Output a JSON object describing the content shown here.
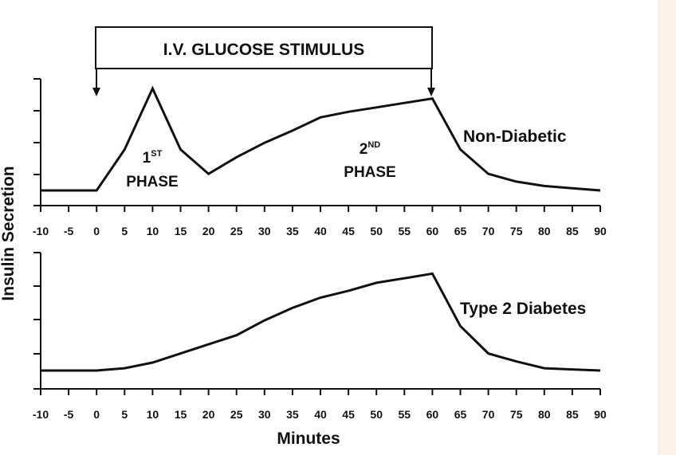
{
  "stimulus_label": "I.V. GLUCOSE STIMULUS",
  "chart_data": {
    "type": "line",
    "xlabel": "Minutes",
    "ylabel": "Insulin Secretion",
    "xlim": [
      -10,
      90
    ],
    "x_ticks": [
      "-10",
      "-5",
      "0",
      "5",
      "10",
      "15",
      "20",
      "25",
      "30",
      "35",
      "40",
      "45",
      "50",
      "55",
      "60",
      "65",
      "70",
      "75",
      "80",
      "85",
      "90"
    ],
    "y_scale": "relative, unlabeled",
    "panels": [
      {
        "label": "Non-Diabetic",
        "x": [
          -10,
          0,
          5,
          10,
          15,
          20,
          25,
          30,
          35,
          40,
          45,
          50,
          55,
          60,
          65,
          70,
          75,
          80,
          85,
          90
        ],
        "y": [
          0.0,
          0.0,
          0.37,
          0.92,
          0.37,
          0.15,
          0.3,
          0.43,
          0.54,
          0.66,
          0.71,
          0.75,
          0.79,
          0.83,
          0.37,
          0.15,
          0.08,
          0.04,
          0.02,
          0.0
        ]
      },
      {
        "label": "Type 2 Diabetes",
        "x": [
          -10,
          0,
          5,
          10,
          15,
          20,
          25,
          30,
          35,
          40,
          45,
          50,
          55,
          60,
          65,
          70,
          75,
          80,
          85,
          90
        ],
        "y": [
          0.0,
          0.0,
          0.02,
          0.07,
          0.15,
          0.23,
          0.31,
          0.44,
          0.55,
          0.64,
          0.7,
          0.77,
          0.81,
          0.85,
          0.39,
          0.15,
          0.08,
          0.02,
          0.01,
          0.0
        ]
      }
    ],
    "annotations": {
      "first_phase": {
        "num": "1",
        "sup": "ST",
        "word": "PHASE"
      },
      "second_phase": {
        "num": "2",
        "sup": "ND",
        "word": "PHASE"
      }
    },
    "stimulus_interval": [
      0,
      60
    ]
  }
}
